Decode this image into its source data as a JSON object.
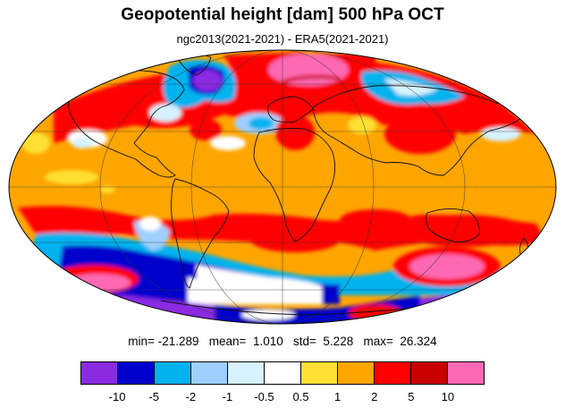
{
  "title": "Geopotential height [dam] 500 hPa OCT",
  "subtitle": "ngc2013(2021-2021) - ERA5(2021-2021)",
  "stats": {
    "min_label": "min=",
    "min_value": "-21.289",
    "mean_label": "mean=",
    "mean_value": "1.010",
    "std_label": "std=",
    "std_value": "5.228",
    "max_label": "max=",
    "max_value": "26.324"
  },
  "colorbar": {
    "colors": [
      "#8a2be2",
      "#0000cd",
      "#00b2ee",
      "#9fcfff",
      "#d6f2ff",
      "#ffffff",
      "#ffe033",
      "#ffa500",
      "#ff0000",
      "#c80000",
      "#ff69b4"
    ],
    "labels": [
      "-10",
      "-5",
      "-2",
      "-1",
      "-0.5",
      "0.5",
      "1",
      "2",
      "5",
      "10"
    ]
  },
  "map": {
    "projection": "mollweide",
    "background_color": "#ffa500"
  }
}
